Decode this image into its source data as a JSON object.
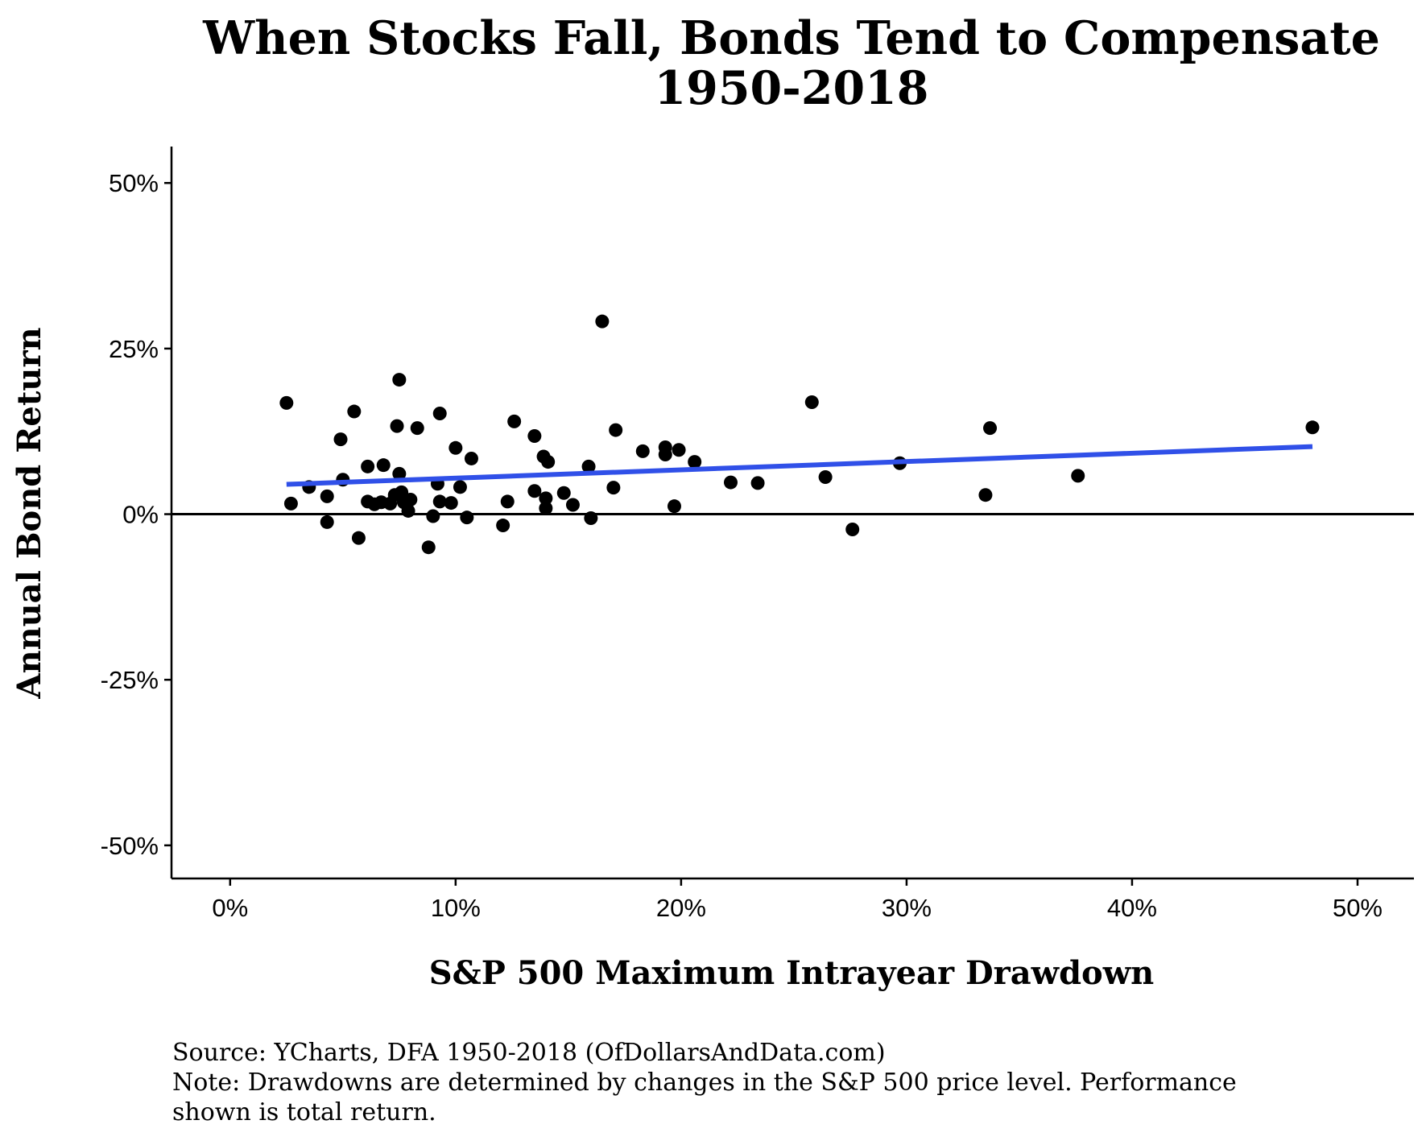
{
  "chart_data": {
    "type": "scatter",
    "title": "When Stocks Fall, Bonds Tend to Compensate",
    "subtitle": "1950-2018",
    "xlabel": "S&P 500 Maximum Intrayear Drawdown",
    "ylabel": "Annual Bond Return",
    "xlim": [
      -0.026,
      0.525
    ],
    "ylim": [
      -0.55,
      0.555
    ],
    "x_ticks": [
      0,
      0.1,
      0.2,
      0.3,
      0.4,
      0.5
    ],
    "x_tick_labels": [
      "0%",
      "10%",
      "20%",
      "30%",
      "40%",
      "50%"
    ],
    "y_ticks": [
      -0.5,
      -0.25,
      0,
      0.25,
      0.5
    ],
    "y_tick_labels": [
      "-50%",
      "-25%",
      "0%",
      "25%",
      "50%"
    ],
    "grid": false,
    "zero_line": true,
    "point_color": "#000000",
    "trend_color": "#3050E8",
    "points": [
      {
        "x": 0.025,
        "y": 0.168
      },
      {
        "x": 0.027,
        "y": 0.016
      },
      {
        "x": 0.035,
        "y": 0.041
      },
      {
        "x": 0.043,
        "y": 0.027
      },
      {
        "x": 0.043,
        "y": -0.012
      },
      {
        "x": 0.049,
        "y": 0.113
      },
      {
        "x": 0.05,
        "y": 0.052
      },
      {
        "x": 0.055,
        "y": 0.155
      },
      {
        "x": 0.057,
        "y": -0.036
      },
      {
        "x": 0.061,
        "y": 0.072
      },
      {
        "x": 0.061,
        "y": 0.019
      },
      {
        "x": 0.064,
        "y": 0.015
      },
      {
        "x": 0.067,
        "y": 0.018
      },
      {
        "x": 0.068,
        "y": 0.074
      },
      {
        "x": 0.071,
        "y": 0.016
      },
      {
        "x": 0.073,
        "y": 0.029
      },
      {
        "x": 0.074,
        "y": 0.133
      },
      {
        "x": 0.075,
        "y": 0.203
      },
      {
        "x": 0.075,
        "y": 0.061
      },
      {
        "x": 0.076,
        "y": 0.033
      },
      {
        "x": 0.077,
        "y": 0.018
      },
      {
        "x": 0.079,
        "y": 0.005
      },
      {
        "x": 0.08,
        "y": 0.022
      },
      {
        "x": 0.083,
        "y": 0.13
      },
      {
        "x": 0.088,
        "y": -0.05
      },
      {
        "x": 0.09,
        "y": -0.003
      },
      {
        "x": 0.092,
        "y": 0.046
      },
      {
        "x": 0.093,
        "y": 0.152
      },
      {
        "x": 0.093,
        "y": 0.019
      },
      {
        "x": 0.098,
        "y": 0.017
      },
      {
        "x": 0.1,
        "y": 0.1
      },
      {
        "x": 0.102,
        "y": 0.041
      },
      {
        "x": 0.105,
        "y": -0.005
      },
      {
        "x": 0.107,
        "y": 0.084
      },
      {
        "x": 0.121,
        "y": -0.017
      },
      {
        "x": 0.123,
        "y": 0.019
      },
      {
        "x": 0.126,
        "y": 0.14
      },
      {
        "x": 0.135,
        "y": 0.118
      },
      {
        "x": 0.135,
        "y": 0.035
      },
      {
        "x": 0.139,
        "y": 0.087
      },
      {
        "x": 0.14,
        "y": 0.009
      },
      {
        "x": 0.14,
        "y": 0.024
      },
      {
        "x": 0.141,
        "y": 0.079
      },
      {
        "x": 0.148,
        "y": 0.032
      },
      {
        "x": 0.152,
        "y": 0.014
      },
      {
        "x": 0.159,
        "y": 0.072
      },
      {
        "x": 0.16,
        "y": -0.006
      },
      {
        "x": 0.165,
        "y": 0.291
      },
      {
        "x": 0.17,
        "y": 0.04
      },
      {
        "x": 0.171,
        "y": 0.127
      },
      {
        "x": 0.183,
        "y": 0.095
      },
      {
        "x": 0.193,
        "y": 0.101
      },
      {
        "x": 0.193,
        "y": 0.09
      },
      {
        "x": 0.197,
        "y": 0.012
      },
      {
        "x": 0.199,
        "y": 0.097
      },
      {
        "x": 0.206,
        "y": 0.079
      },
      {
        "x": 0.222,
        "y": 0.048
      },
      {
        "x": 0.234,
        "y": 0.047
      },
      {
        "x": 0.258,
        "y": 0.169
      },
      {
        "x": 0.264,
        "y": 0.056
      },
      {
        "x": 0.276,
        "y": -0.023
      },
      {
        "x": 0.297,
        "y": 0.077
      },
      {
        "x": 0.335,
        "y": 0.029
      },
      {
        "x": 0.337,
        "y": 0.13
      },
      {
        "x": 0.376,
        "y": 0.058
      },
      {
        "x": 0.48,
        "y": 0.131
      }
    ],
    "trend_line": [
      {
        "x": 0.025,
        "y": 0.045
      },
      {
        "x": 0.48,
        "y": 0.102
      }
    ]
  },
  "source_note": "Source:  YCharts, DFA 1950-2018 (OfDollarsAndData.com)",
  "note_line1": "Note: Drawdowns are determined by changes in the S&P 500 price level. Performance",
  "note_line2": "shown is total return."
}
